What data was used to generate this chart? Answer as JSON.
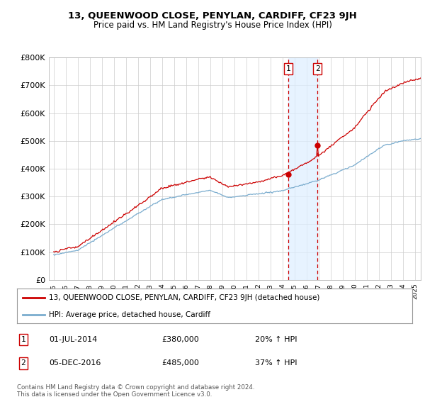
{
  "title": "13, QUEENWOOD CLOSE, PENYLAN, CARDIFF, CF23 9JH",
  "subtitle": "Price paid vs. HM Land Registry's House Price Index (HPI)",
  "legend_line1": "13, QUEENWOOD CLOSE, PENYLAN, CARDIFF, CF23 9JH (detached house)",
  "legend_line2": "HPI: Average price, detached house, Cardiff",
  "annotation1_date": "01-JUL-2014",
  "annotation1_price": "£380,000",
  "annotation1_hpi": "20% ↑ HPI",
  "annotation2_date": "05-DEC-2016",
  "annotation2_price": "£485,000",
  "annotation2_hpi": "37% ↑ HPI",
  "sale1_year": 2014.5,
  "sale1_value": 380000,
  "sale2_year": 2016.92,
  "sale2_value": 485000,
  "footer": "Contains HM Land Registry data © Crown copyright and database right 2024.\nThis data is licensed under the Open Government Licence v3.0.",
  "red_color": "#cc0000",
  "blue_color": "#7aacce",
  "shading_color": "#ddeeff",
  "background_color": "#ffffff",
  "grid_color": "#cccccc",
  "ylim": [
    0,
    800000
  ],
  "yticks": [
    0,
    100000,
    200000,
    300000,
    400000,
    500000,
    600000,
    700000,
    800000
  ]
}
